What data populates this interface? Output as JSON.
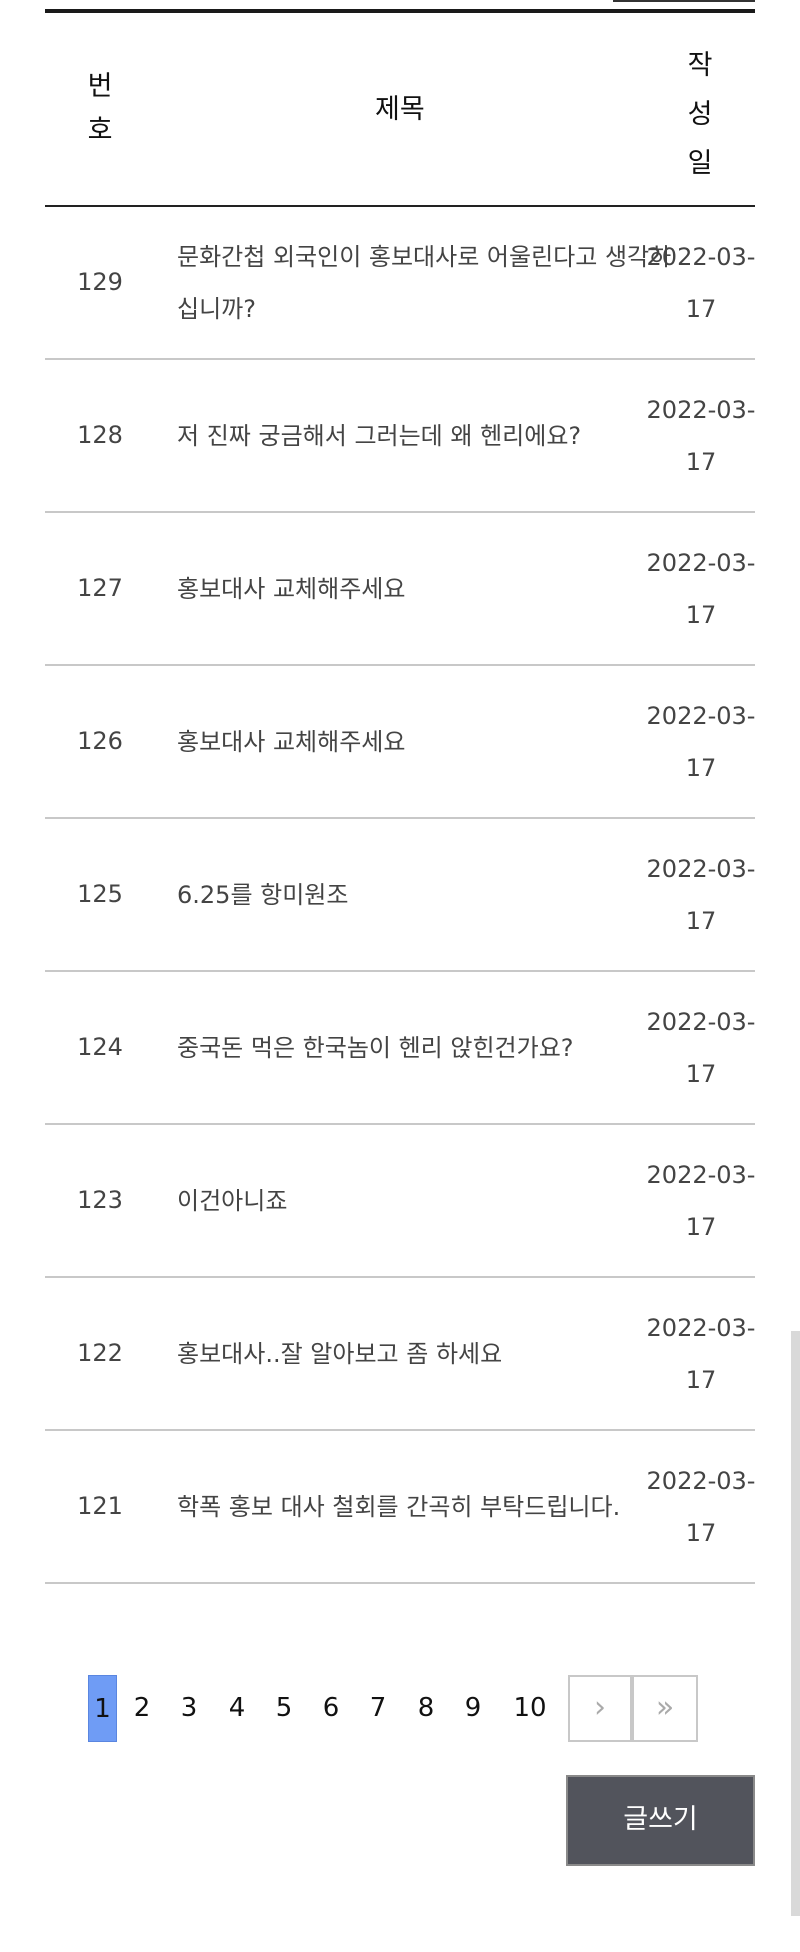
{
  "table": {
    "headers": {
      "number": "번호",
      "title": "제목",
      "date": "작성일"
    },
    "rows": [
      {
        "number": "129",
        "title": "문화간첩 외국인이 홍보대사로 어울린다고 생각하십니까?",
        "date": "2022-03-17"
      },
      {
        "number": "128",
        "title": "저 진짜 궁금해서 그러는데 왜 헨리에요?",
        "date": "2022-03-17"
      },
      {
        "number": "127",
        "title": "홍보대사 교체해주세요",
        "date": "2022-03-17"
      },
      {
        "number": "126",
        "title": "홍보대사 교체해주세요",
        "date": "2022-03-17"
      },
      {
        "number": "125",
        "title": "6.25를 항미원조",
        "date": "2022-03-17"
      },
      {
        "number": "124",
        "title": "중국돈 먹은 한국놈이 헨리 앉힌건가요?",
        "date": "2022-03-17"
      },
      {
        "number": "123",
        "title": "이건아니죠",
        "date": "2022-03-17"
      },
      {
        "number": "122",
        "title": "홍보대사..잘 알아보고 좀 하세요",
        "date": "2022-03-17"
      },
      {
        "number": "121",
        "title": "학폭 홍보 대사 철회를 간곡히 부탁드립니다.",
        "date": "2022-03-17"
      }
    ]
  },
  "pagination": {
    "pages": [
      "1",
      "2",
      "3",
      "4",
      "5",
      "6",
      "7",
      "8",
      "9",
      "10"
    ],
    "current": "1",
    "next_icon": "›",
    "last_icon": "»",
    "active_color": "#6f9cf5"
  },
  "write_button": {
    "label": "글쓰기",
    "color": "#52545c"
  }
}
